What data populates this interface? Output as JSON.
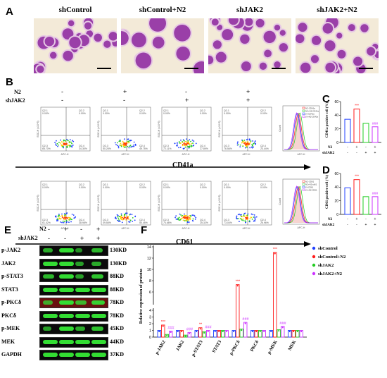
{
  "panels": {
    "A": "A",
    "B": "B",
    "C": "C",
    "D": "D",
    "E": "E",
    "F": "F"
  },
  "micrographs": [
    {
      "title": "shControl"
    },
    {
      "title": "shControl+N2"
    },
    {
      "title": "shJAK2"
    },
    {
      "title": "shJAK2+N2"
    }
  ],
  "flow": {
    "n2_label": "N2",
    "shjak2_label": "shJAK2",
    "n2_signs": [
      "-",
      "+",
      "-",
      "+"
    ],
    "shjak2_signs": [
      "-",
      "-",
      "+",
      "+"
    ],
    "cd41a_label": "CD41a",
    "cd61_label": "CD61",
    "quadrant_row1": [
      {
        "q1": "Q2-1",
        "q1v": "0.00%",
        "q2": "Q2-2",
        "q2v": "0.00%",
        "q3": "Q2-3",
        "q3v": "65.70%",
        "q4": "Q2-4",
        "q4v": "34.30%"
      },
      {
        "q1": "Q2-1",
        "q1v": "0.00%",
        "q2": "Q2-2",
        "q2v": "0.00%",
        "q3": "Q2-3",
        "q3v": "50.25%",
        "q4": "Q2-4",
        "q4v": "49.75%"
      },
      {
        "q1": "Q2-1",
        "q1v": "0.00%",
        "q2": "Q2-2",
        "q2v": "0.00%",
        "q3": "Q2-3",
        "q3v": "72.11%",
        "q4": "Q2-4",
        "q4v": "27.89%"
      },
      {
        "q1": "Q2-1",
        "q1v": "0.00%",
        "q2": "Q2-2",
        "q2v": "0.00%",
        "q3": "Q2-3",
        "q3v": "76.56%",
        "q4": "Q2-4",
        "q4v": "23.44%"
      }
    ],
    "quadrant_row2": [
      {
        "q1": "Q2-1",
        "q1v": "0.00%",
        "q2": "Q2-2",
        "q2v": "0.00%",
        "q3": "Q2-3",
        "q3v": "61.02%",
        "q4": "Q2-4",
        "q4v": "38.98%"
      },
      {
        "q1": "Q2-1",
        "q1v": "0.00%",
        "q2": "Q2-2",
        "q2v": "0.00%",
        "q3": "Q2-3",
        "q3v": "49.55%",
        "q4": "Q2-4",
        "q4v": "50.45%"
      },
      {
        "q1": "Q2-1",
        "q1v": "0.00%",
        "q2": "Q2-2",
        "q2v": "0.00%",
        "q3": "Q2-3",
        "q3v": "74.68%",
        "q4": "Q2-4",
        "q4v": "25.32%"
      },
      {
        "q1": "Q2-1",
        "q1v": "0.00%",
        "q2": "Q2-2",
        "q2v": "0.00%",
        "q3": "Q2-3",
        "q3v": "73.04%",
        "q4": "Q2-4",
        "q4v": "26.96%"
      }
    ],
    "axis_x": "APC-H",
    "axis_y": "SSC-H (x10^5)",
    "hist_y": "Count",
    "hist_legend_1": [
      "NC-CD41a",
      "NC+N2-CD41a",
      "LV-CD41a",
      "LV+N2-CD41a"
    ],
    "hist_legend_2": [
      "NC-CD61",
      "NC+N2-cd61",
      "LV-CD61",
      "LV+N2-CD61"
    ]
  },
  "colors": {
    "ctrl": "#1f3fff",
    "n2": "#ff1a1a",
    "shjak2": "#22cc22",
    "shjak2n2": "#cc33ff",
    "band": "#33dd33"
  },
  "chart_data": [
    {
      "type": "bar",
      "ylabel": "CD41a positive cell (%)",
      "ylim": [
        0,
        60
      ],
      "yticks": [
        "0",
        "20",
        "40",
        "60"
      ],
      "categories": [
        "shControl",
        "shControl+N2",
        "shJAK2",
        "shJAK2+N2"
      ],
      "values": [
        34,
        49,
        28,
        23
      ],
      "annotations": [
        "",
        "***",
        "",
        "###"
      ],
      "row_n2_label": "N2",
      "row_shjak2_label": "shJAK2",
      "n2": [
        "-",
        "+",
        "-",
        "+"
      ],
      "shjak2": [
        "-",
        "-",
        "+",
        "+"
      ]
    },
    {
      "type": "bar",
      "ylabel": "CD61 positive cell (%)",
      "ylim": [
        0,
        60
      ],
      "yticks": [
        "0",
        "20",
        "40",
        "60"
      ],
      "categories": [
        "shControl",
        "shControl+N2",
        "shJAK2",
        "shJAK2+N2"
      ],
      "values": [
        39,
        51,
        26,
        26
      ],
      "annotations": [
        "",
        "***",
        "",
        "###"
      ],
      "row_n2_label": "N2",
      "row_shjak2_label": "shJAK2",
      "n2": [
        "-",
        "+",
        "-",
        "+"
      ],
      "shjak2": [
        "-",
        "-",
        "+",
        "+"
      ]
    },
    {
      "type": "bar",
      "ylabel": "Relative expression of proteins",
      "yticks": [
        "0",
        "1",
        "2",
        "3",
        "4",
        "6",
        "8",
        "10",
        "12",
        "14"
      ],
      "categories": [
        "p-JAK2",
        "JAK2",
        "p-STAT3",
        "STAT3",
        "p-PKCδ",
        "PKCδ",
        "p-MEK",
        "MEK"
      ],
      "series": [
        {
          "name": "shControl",
          "values": [
            1.0,
            1.0,
            1.0,
            1.0,
            1.0,
            1.0,
            1.0,
            1.0
          ]
        },
        {
          "name": "shControl+N2",
          "values": [
            1.8,
            1.0,
            1.4,
            1.0,
            7.3,
            1.0,
            13.0,
            1.0
          ]
        },
        {
          "name": "shJAK2",
          "values": [
            0.4,
            0.3,
            0.8,
            1.0,
            1.2,
            1.0,
            1.1,
            1.0
          ]
        },
        {
          "name": "shJAK2+N2",
          "values": [
            0.9,
            0.7,
            1.0,
            1.0,
            2.2,
            1.0,
            1.6,
            1.0
          ]
        }
      ],
      "annotations_n2": [
        "***",
        "",
        "**",
        "",
        "***",
        "",
        "***",
        ""
      ],
      "annotations_j2n2": [
        "###",
        "###",
        "###",
        "",
        "###",
        "",
        "###",
        ""
      ]
    }
  ],
  "western": {
    "n2_label": "N2",
    "shjak2_label": "shJAK2",
    "n2": [
      "-",
      "+",
      "-",
      "+"
    ],
    "shjak2": [
      "-",
      "-",
      "+",
      "+"
    ],
    "rows": [
      {
        "name": "p-JAK2",
        "kd": "130KD"
      },
      {
        "name": "JAK2",
        "kd": "130KD"
      },
      {
        "name": "p-STAT3",
        "kd": "88KD"
      },
      {
        "name": "STAT3",
        "kd": "88KD"
      },
      {
        "name": "p-PKCδ",
        "kd": "78KD"
      },
      {
        "name": "PKCδ",
        "kd": "78KD"
      },
      {
        "name": "p-MEK",
        "kd": "45KD"
      },
      {
        "name": "MEK",
        "kd": "44KD"
      },
      {
        "name": "GAPDH",
        "kd": "37KD"
      }
    ]
  }
}
